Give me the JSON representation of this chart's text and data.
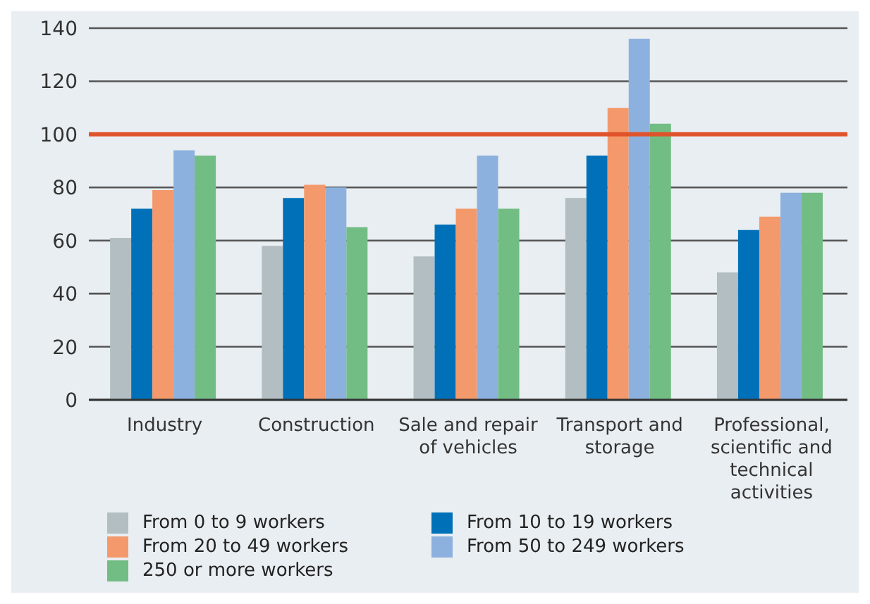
{
  "chart_data": {
    "type": "bar",
    "categories": [
      "Industry",
      "Construction",
      "Sale and repair of vehicles",
      "Transport and storage",
      "Professional, scientific and technical activities"
    ],
    "series": [
      {
        "name": "From 0 to 9 workers",
        "color": "#b3bec2",
        "values": [
          61,
          58,
          54,
          76,
          48
        ]
      },
      {
        "name": "From 10 to 19 workers",
        "color": "#0071b9",
        "values": [
          72,
          76,
          66,
          92,
          64
        ]
      },
      {
        "name": "From 20 to 49 workers",
        "color": "#f4996b",
        "values": [
          79,
          81,
          72,
          110,
          69
        ]
      },
      {
        "name": "From 50 to 249 workers",
        "color": "#8db1de",
        "values": [
          94,
          80,
          92,
          136,
          78
        ]
      },
      {
        "name": "250 or more workers",
        "color": "#72bd84",
        "values": [
          92,
          65,
          72,
          104,
          78
        ]
      }
    ],
    "ylim": [
      0,
      140
    ],
    "yticks": [
      0,
      20,
      40,
      60,
      80,
      100,
      120,
      140
    ],
    "grid": "y",
    "legend": "bottom",
    "ref_lines": [
      {
        "axis": "y",
        "value": 100,
        "color": "#e0532a"
      }
    ]
  }
}
